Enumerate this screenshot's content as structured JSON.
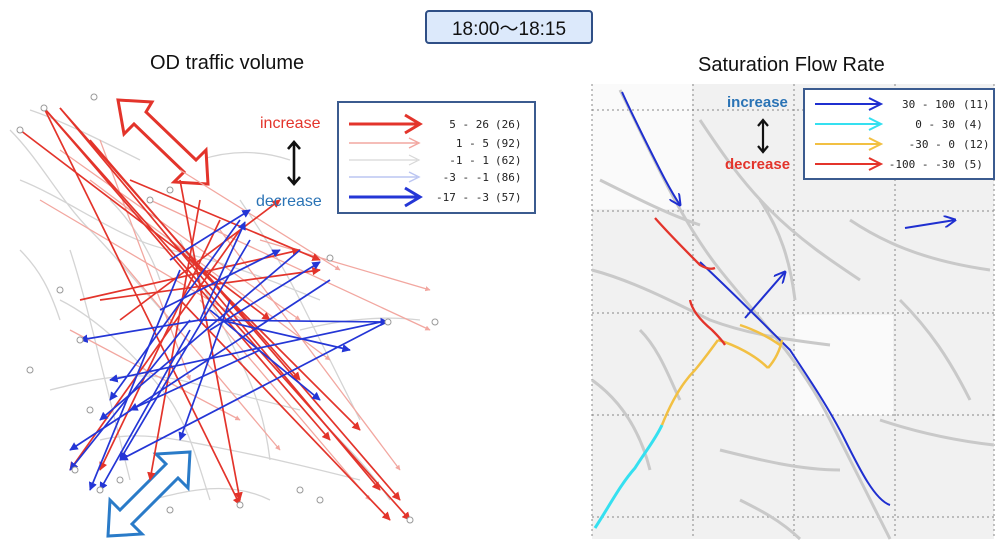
{
  "time_label": "18:00〜18:15",
  "left_panel": {
    "title": "OD traffic volume",
    "increase_label": "increase",
    "decrease_label": "decrease",
    "legend": [
      {
        "range": "5 - 26",
        "count": "(26)",
        "color": "#e3342b"
      },
      {
        "range": "1 -  5",
        "count": "(92)",
        "color": "#f2a7a0"
      },
      {
        "range": "-1 -  1",
        "count": "(62)",
        "color": "#d7d7d7"
      },
      {
        "range": "-3 - -1",
        "count": "(86)",
        "color": "#bcc6f2"
      },
      {
        "range": "-17 - -3",
        "count": "(57)",
        "color": "#2436d6"
      }
    ]
  },
  "right_panel": {
    "title": "Saturation Flow Rate",
    "increase_label": "increase",
    "decrease_label": "decrease",
    "legend": [
      {
        "range": "30 - 100",
        "count": "(11)",
        "color": "#1f2fd0"
      },
      {
        "range": "0 -  30",
        "count": "(4)",
        "color": "#35e0f0"
      },
      {
        "range": "-30 -   0",
        "count": "(12)",
        "color": "#f2c043"
      },
      {
        "range": "-100 - -30",
        "count": "(5)",
        "color": "#e3342b"
      }
    ]
  },
  "colors": {
    "increase_text": "#e3342b",
    "decrease_text": "#2a73b5",
    "increase_arrow": "#e3342b",
    "decrease_arrow": "#2a7bc8",
    "road": "#c8c8c8"
  },
  "icons": [
    "double-arrow-up-down-icon",
    "diagonal-double-arrow-icon"
  ]
}
